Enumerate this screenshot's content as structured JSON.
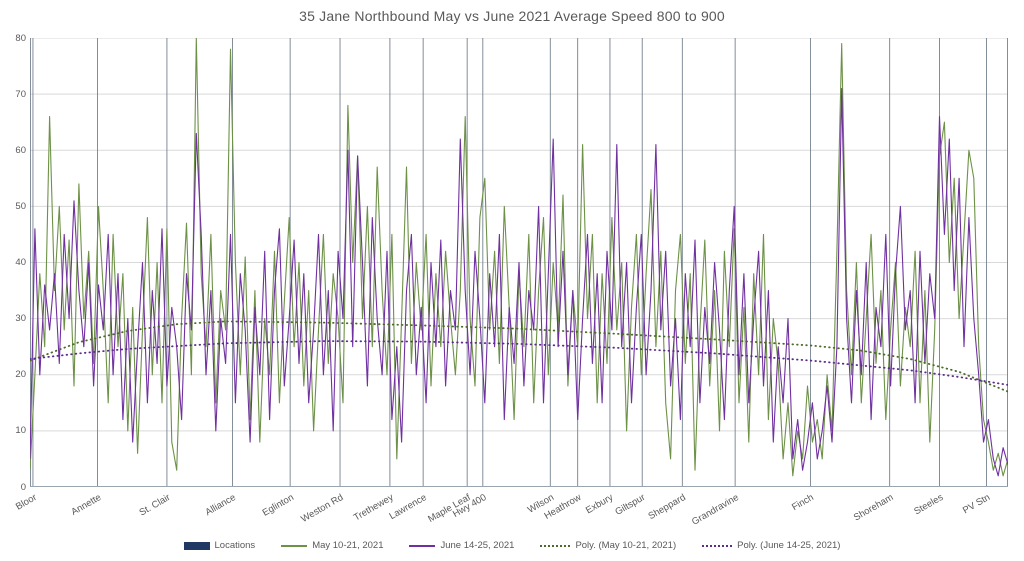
{
  "title": "35 Jane Northbound May vs June 2021 Average Speed 800 to 900",
  "colors": {
    "may_line": "#6d9147",
    "june_line": "#7030a0",
    "may_poly": "#4c6a2a",
    "june_poly": "#5b2d87",
    "locations_marker": "#1f3864",
    "h_gridline": "#d9d9d9",
    "v_location_line": "#75828f",
    "axis_line": "#9aa5b0",
    "text": "#595959"
  },
  "legend": {
    "items": [
      {
        "label": "Locations",
        "marker": "rect",
        "color": "#1f3864"
      },
      {
        "label": "May 10-21, 2021",
        "marker": "line",
        "color": "#6d9147"
      },
      {
        "label": "June 14-25, 2021",
        "marker": "line",
        "color": "#7030a0"
      },
      {
        "label": "Poly. (May 10-21, 2021)",
        "marker": "dotted",
        "color": "#4c6a2a"
      },
      {
        "label": "Poly. (June 14-25, 2021)",
        "marker": "dotted",
        "color": "#5b2d87"
      }
    ]
  },
  "chart_data": {
    "type": "line",
    "title": "35 Jane Northbound May vs June 2021 Average Speed 800 to 900",
    "xlabel": "",
    "ylabel": "",
    "ylim": [
      0,
      80
    ],
    "y_ticks": [
      0,
      10,
      20,
      30,
      40,
      50,
      60,
      70,
      80
    ],
    "grid": {
      "horizontal": true,
      "vertical_location_lines": true
    },
    "legend_position": "bottom",
    "locations": [
      {
        "name": "Bloor",
        "x": 0.003
      },
      {
        "name": "Annette",
        "x": 0.069
      },
      {
        "name": "St. Clair",
        "x": 0.14
      },
      {
        "name": "Alliance",
        "x": 0.207
      },
      {
        "name": "Eglinton",
        "x": 0.266
      },
      {
        "name": "Weston Rd",
        "x": 0.317
      },
      {
        "name": "Trethewey",
        "x": 0.368
      },
      {
        "name": "Lawrence",
        "x": 0.402
      },
      {
        "name": "Maple Leaf",
        "x": 0.447
      },
      {
        "name": "Hwy 400",
        "x": 0.463
      },
      {
        "name": "Wilson",
        "x": 0.532
      },
      {
        "name": "Heathrow",
        "x": 0.56
      },
      {
        "name": "Exbury",
        "x": 0.593
      },
      {
        "name": "Giltspur",
        "x": 0.626
      },
      {
        "name": "Sheppard",
        "x": 0.667
      },
      {
        "name": "Grandravine",
        "x": 0.721
      },
      {
        "name": "Finch",
        "x": 0.798
      },
      {
        "name": "Shoreham",
        "x": 0.879
      },
      {
        "name": "Steeles",
        "x": 0.93
      },
      {
        "name": "PV Stn",
        "x": 0.978
      }
    ],
    "series": [
      {
        "name": "May 10-21, 2021",
        "color": "#6d9147",
        "x_step": 0.005,
        "values": [
          3,
          20,
          38,
          25,
          66,
          35,
          50,
          28,
          44,
          18,
          54,
          30,
          42,
          22,
          50,
          35,
          15,
          45,
          25,
          38,
          10,
          32,
          6,
          28,
          48,
          20,
          40,
          15,
          46,
          8,
          3,
          30,
          47,
          20,
          80,
          38,
          25,
          45,
          15,
          35,
          28,
          78,
          40,
          20,
          41,
          12,
          35,
          8,
          30,
          20,
          42,
          15,
          33,
          48,
          25,
          40,
          18,
          35,
          10,
          28,
          45,
          22,
          38,
          30,
          15,
          68,
          40,
          59,
          30,
          50,
          25,
          57,
          35,
          20,
          45,
          5,
          30,
          57,
          22,
          40,
          28,
          45,
          18,
          38,
          25,
          42,
          30,
          20,
          35,
          66,
          30,
          18,
          48,
          55,
          28,
          42,
          22,
          50,
          32,
          12,
          38,
          25,
          45,
          15,
          35,
          48,
          20,
          40,
          28,
          52,
          18,
          35,
          25,
          61,
          30,
          45,
          15,
          38,
          22,
          48,
          28,
          40,
          10,
          32,
          45,
          20,
          38,
          53,
          25,
          42,
          15,
          5,
          35,
          45,
          22,
          38,
          3,
          28,
          44,
          18,
          35,
          10,
          42,
          25,
          46,
          15,
          32,
          8,
          38,
          20,
          45,
          12,
          30,
          22,
          5,
          15,
          2,
          10,
          5,
          18,
          8,
          12,
          5,
          20,
          10,
          42,
          79,
          35,
          20,
          40,
          15,
          30,
          45,
          22,
          35,
          12,
          28,
          40,
          18,
          32,
          25,
          42,
          15,
          35,
          8,
          28,
          59,
          65,
          40,
          55,
          30,
          45,
          60,
          55,
          25,
          12,
          8,
          3,
          6,
          2,
          5
        ]
      },
      {
        "name": "June 14-25, 2021",
        "color": "#7030a0",
        "x_step": 0.005,
        "values": [
          5,
          46,
          20,
          36,
          28,
          38,
          22,
          45,
          30,
          51,
          35,
          25,
          40,
          18,
          36,
          28,
          45,
          20,
          38,
          12,
          30,
          8,
          25,
          40,
          15,
          35,
          22,
          46,
          18,
          32,
          25,
          12,
          38,
          28,
          63,
          45,
          20,
          35,
          10,
          30,
          22,
          45,
          15,
          38,
          28,
          8,
          32,
          20,
          42,
          12,
          35,
          46,
          18,
          30,
          44,
          22,
          38,
          15,
          28,
          45,
          20,
          35,
          10,
          42,
          30,
          60,
          25,
          59,
          40,
          18,
          48,
          30,
          20,
          42,
          12,
          25,
          8,
          35,
          45,
          20,
          32,
          15,
          40,
          25,
          44,
          18,
          35,
          28,
          62,
          35,
          20,
          42,
          30,
          15,
          38,
          25,
          45,
          12,
          32,
          22,
          40,
          18,
          35,
          28,
          50,
          15,
          38,
          62,
          25,
          42,
          20,
          35,
          12,
          30,
          45,
          22,
          38,
          15,
          42,
          28,
          61,
          25,
          40,
          15,
          32,
          45,
          20,
          35,
          61,
          28,
          42,
          18,
          30,
          12,
          38,
          25,
          44,
          15,
          32,
          22,
          40,
          28,
          12,
          35,
          50,
          20,
          38,
          15,
          30,
          42,
          18,
          35,
          8,
          25,
          15,
          30,
          5,
          12,
          3,
          8,
          15,
          5,
          10,
          18,
          8,
          25,
          71,
          30,
          15,
          35,
          20,
          40,
          12,
          32,
          25,
          45,
          18,
          38,
          50,
          28,
          35,
          15,
          42,
          22,
          38,
          30,
          66,
          45,
          62,
          35,
          55,
          25,
          48,
          30,
          20,
          8,
          12,
          5,
          2,
          7,
          4
        ]
      }
    ],
    "trendlines": [
      {
        "name": "Poly. (May 10-21, 2021)",
        "color": "#4c6a2a",
        "style": "dotted",
        "points": [
          [
            0,
            22.5
          ],
          [
            0.05,
            25.8
          ],
          [
            0.1,
            27.8
          ],
          [
            0.15,
            29.0
          ],
          [
            0.2,
            29.5
          ],
          [
            0.3,
            29.3
          ],
          [
            0.4,
            28.8
          ],
          [
            0.5,
            28.2
          ],
          [
            0.6,
            27.3
          ],
          [
            0.7,
            26.3
          ],
          [
            0.8,
            25.2
          ],
          [
            0.85,
            24.3
          ],
          [
            0.9,
            22.8
          ],
          [
            0.95,
            20.5
          ],
          [
            1.0,
            17.0
          ]
        ]
      },
      {
        "name": "Poly. (June 14-25, 2021)",
        "color": "#5b2d87",
        "style": "dotted",
        "points": [
          [
            0,
            22.8
          ],
          [
            0.05,
            23.8
          ],
          [
            0.1,
            24.6
          ],
          [
            0.2,
            25.6
          ],
          [
            0.3,
            26.0
          ],
          [
            0.4,
            25.9
          ],
          [
            0.5,
            25.5
          ],
          [
            0.6,
            24.8
          ],
          [
            0.7,
            23.8
          ],
          [
            0.8,
            22.5
          ],
          [
            0.9,
            20.8
          ],
          [
            0.95,
            19.6
          ],
          [
            1.0,
            18.2
          ]
        ]
      }
    ]
  }
}
